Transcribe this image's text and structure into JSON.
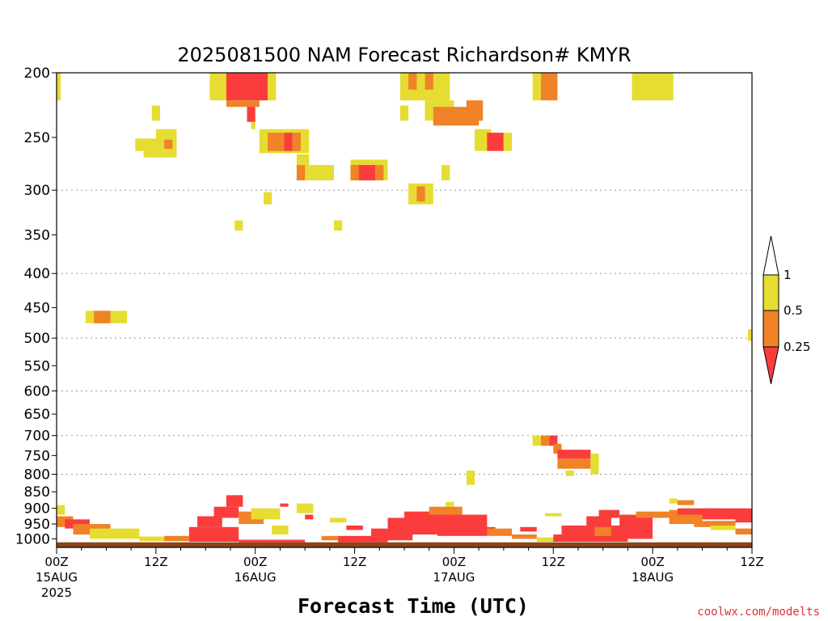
{
  "chart_data": {
    "type": "heatmap",
    "title": "2025081500 NAM Forecast Richardson# KMYR",
    "xlabel": "Forecast Time (UTC)",
    "ylabel": "",
    "credit": "coolwx.com/modelts",
    "x_unit": "forecast hour",
    "xlim": [
      0,
      84
    ],
    "x_ticks": [
      {
        "hour": 0,
        "label": "00Z",
        "date": "15AUG",
        "year": "2025"
      },
      {
        "hour": 12,
        "label": "12Z",
        "date": "",
        "year": ""
      },
      {
        "hour": 24,
        "label": "00Z",
        "date": "16AUG",
        "year": ""
      },
      {
        "hour": 36,
        "label": "12Z",
        "date": "",
        "year": ""
      },
      {
        "hour": 48,
        "label": "00Z",
        "date": "17AUG",
        "year": ""
      },
      {
        "hour": 60,
        "label": "12Z",
        "date": "",
        "year": ""
      },
      {
        "hour": 72,
        "label": "00Z",
        "date": "18AUG",
        "year": ""
      },
      {
        "hour": 84,
        "label": "12Z",
        "date": "",
        "year": ""
      }
    ],
    "y_unit": "hPa",
    "y_scale": "log",
    "ylim": [
      1030,
      200
    ],
    "y_ticks": [
      200,
      250,
      300,
      350,
      400,
      450,
      500,
      550,
      600,
      650,
      700,
      750,
      800,
      850,
      900,
      950,
      1000
    ],
    "y_gridlines": [
      300,
      400,
      500,
      600,
      700,
      800
    ],
    "ground_band": [
      1012,
      1030
    ],
    "colorbar": {
      "ticks": [
        "1",
        "0.5",
        "0.25"
      ],
      "levels": [
        {
          "range": "1 to 0.5",
          "color": "#e6dc32"
        },
        {
          "range": "0.5 to 0.25",
          "color": "#f08228"
        },
        {
          "range": "below 0.25",
          "color": "#fa3c3c"
        }
      ]
    },
    "colors": {
      "yellow": "#e6dc32",
      "orange": "#f08228",
      "red": "#fa3c3c",
      "ground": "#8b4513",
      "credit": "#e03030"
    },
    "cells": [
      [
        -0.5,
        0.5,
        200,
        220,
        "Y"
      ],
      [
        18.5,
        20.5,
        200,
        220,
        "Y"
      ],
      [
        20.5,
        25.5,
        200,
        220,
        "R"
      ],
      [
        25.5,
        26.5,
        200,
        220,
        "Y"
      ],
      [
        20.5,
        24.5,
        220,
        225,
        "O"
      ],
      [
        23,
        24,
        225,
        237,
        "R"
      ],
      [
        23.5,
        24,
        237,
        243,
        "Y"
      ],
      [
        11.5,
        12.5,
        224,
        236,
        "Y"
      ],
      [
        9.5,
        14.5,
        251,
        262,
        "Y"
      ],
      [
        13,
        14,
        251,
        260,
        "O"
      ],
      [
        10.5,
        14.5,
        262,
        268,
        "Y"
      ],
      [
        12,
        14.5,
        243,
        252,
        "Y"
      ],
      [
        24.5,
        30.5,
        243,
        264,
        "Y"
      ],
      [
        25.5,
        27.5,
        246,
        262,
        "O"
      ],
      [
        27.5,
        28.5,
        246,
        262,
        "R"
      ],
      [
        28.5,
        29.5,
        246,
        262,
        "O"
      ],
      [
        29,
        30.5,
        265,
        290,
        "Y"
      ],
      [
        29,
        30,
        275,
        290,
        "O"
      ],
      [
        30.5,
        33.5,
        275,
        290,
        "Y"
      ],
      [
        35.5,
        40,
        270,
        290,
        "Y"
      ],
      [
        35.5,
        36.5,
        275,
        290,
        "O"
      ],
      [
        36.5,
        38.5,
        275,
        290,
        "R"
      ],
      [
        38.5,
        39.5,
        275,
        290,
        "O"
      ],
      [
        25,
        26,
        302,
        315,
        "Y"
      ],
      [
        21.5,
        22.5,
        333,
        345,
        "Y"
      ],
      [
        33.5,
        34.5,
        333,
        345,
        "Y"
      ],
      [
        41.5,
        47.5,
        200,
        220,
        "Y"
      ],
      [
        42.5,
        43.5,
        200,
        212,
        "O"
      ],
      [
        44.5,
        45.5,
        200,
        212,
        "O"
      ],
      [
        41.5,
        42.5,
        224,
        236,
        "Y"
      ],
      [
        44.5,
        48,
        220,
        236,
        "Y"
      ],
      [
        45.5,
        51,
        225,
        240,
        "O"
      ],
      [
        49.5,
        51.5,
        220,
        236,
        "O"
      ],
      [
        50.5,
        52.5,
        243,
        262,
        "Y"
      ],
      [
        52,
        54,
        246,
        262,
        "R"
      ],
      [
        54,
        55,
        246,
        262,
        "Y"
      ],
      [
        46.5,
        47.5,
        275,
        290,
        "Y"
      ],
      [
        42.5,
        45.5,
        293,
        315,
        "Y"
      ],
      [
        43.5,
        44.5,
        296,
        312,
        "O"
      ],
      [
        57.5,
        58.5,
        200,
        220,
        "Y"
      ],
      [
        58.5,
        60.5,
        200,
        220,
        "O"
      ],
      [
        69.5,
        74.5,
        200,
        220,
        "Y"
      ],
      [
        3.5,
        8.5,
        455,
        475,
        "Y"
      ],
      [
        4.5,
        6.5,
        455,
        475,
        "O"
      ],
      [
        83.5,
        84,
        485,
        505,
        "Y"
      ],
      [
        57.5,
        58.5,
        700,
        725,
        "Y"
      ],
      [
        58.5,
        59.5,
        700,
        725,
        "O"
      ],
      [
        59.5,
        60.5,
        700,
        725,
        "R"
      ],
      [
        60,
        61,
        720,
        745,
        "O"
      ],
      [
        60.5,
        64.5,
        735,
        758,
        "R"
      ],
      [
        60.5,
        64.5,
        758,
        785,
        "O"
      ],
      [
        64.5,
        65.5,
        745,
        800,
        "Y"
      ],
      [
        61.5,
        62.5,
        790,
        805,
        "Y"
      ],
      [
        49.5,
        50.5,
        790,
        830,
        "Y"
      ],
      [
        -0.5,
        1,
        890,
        920,
        "Y"
      ],
      [
        -0.5,
        2,
        925,
        960,
        "O"
      ],
      [
        1,
        4,
        935,
        965,
        "R"
      ],
      [
        2,
        6.5,
        950,
        985,
        "O"
      ],
      [
        4,
        10,
        965,
        1000,
        "Y"
      ],
      [
        10,
        13,
        992,
        1008,
        "Y"
      ],
      [
        13,
        16,
        990,
        1008,
        "O"
      ],
      [
        16,
        22,
        960,
        1010,
        "R"
      ],
      [
        17,
        20,
        925,
        960,
        "R"
      ],
      [
        19,
        22,
        895,
        930,
        "R"
      ],
      [
        20.5,
        22.5,
        860,
        895,
        "R"
      ],
      [
        22,
        25,
        910,
        950,
        "O"
      ],
      [
        23.5,
        27,
        900,
        935,
        "Y"
      ],
      [
        26,
        28,
        955,
        985,
        "Y"
      ],
      [
        22,
        30,
        1003,
        1012,
        "R"
      ],
      [
        27,
        28,
        885,
        895,
        "R"
      ],
      [
        29,
        31,
        885,
        915,
        "Y"
      ],
      [
        30,
        31,
        920,
        935,
        "R"
      ],
      [
        32,
        34,
        990,
        1005,
        "O"
      ],
      [
        34,
        40,
        990,
        1012,
        "R"
      ],
      [
        38,
        43,
        965,
        1005,
        "R"
      ],
      [
        40,
        46,
        930,
        985,
        "R"
      ],
      [
        42,
        47,
        910,
        950,
        "R"
      ],
      [
        46,
        52,
        920,
        990,
        "R"
      ],
      [
        45,
        49,
        895,
        920,
        "O"
      ],
      [
        47,
        48,
        880,
        895,
        "Y"
      ],
      [
        49,
        53,
        960,
        985,
        "R"
      ],
      [
        52,
        55,
        965,
        990,
        "O"
      ],
      [
        55,
        58,
        985,
        1000,
        "O"
      ],
      [
        58,
        61,
        995,
        1010,
        "Y"
      ],
      [
        60,
        65,
        985,
        1010,
        "R"
      ],
      [
        61,
        69,
        955,
        1010,
        "R"
      ],
      [
        64,
        67,
        925,
        965,
        "R"
      ],
      [
        65.5,
        68,
        905,
        930,
        "R"
      ],
      [
        68,
        72,
        920,
        1000,
        "R"
      ],
      [
        70,
        74,
        910,
        930,
        "O"
      ],
      [
        74,
        78,
        905,
        950,
        "O"
      ],
      [
        75,
        80,
        900,
        920,
        "R"
      ],
      [
        78,
        84,
        900,
        935,
        "R"
      ],
      [
        77,
        82,
        940,
        960,
        "O"
      ],
      [
        74,
        75,
        870,
        885,
        "Y"
      ],
      [
        75,
        77,
        875,
        890,
        "O"
      ],
      [
        82,
        84,
        930,
        945,
        "R"
      ],
      [
        65,
        67,
        960,
        990,
        "O"
      ],
      [
        33,
        35,
        930,
        945,
        "Y"
      ],
      [
        35,
        37,
        955,
        970,
        "R"
      ],
      [
        56,
        58,
        960,
        975,
        "R"
      ],
      [
        59,
        61,
        915,
        925,
        "Y"
      ],
      [
        79,
        82,
        955,
        970,
        "Y"
      ],
      [
        82,
        84,
        965,
        985,
        "O"
      ]
    ]
  }
}
